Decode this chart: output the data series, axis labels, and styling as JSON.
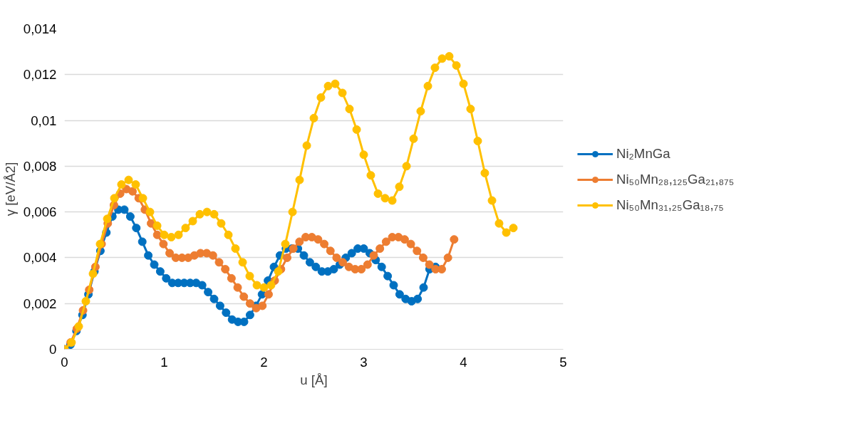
{
  "chart_data": {
    "type": "line",
    "xlabel": "u [Å]",
    "ylabel": "γ [eV/Å2]",
    "xlim": [
      0,
      5
    ],
    "xticks": [
      0,
      1,
      2,
      3,
      4,
      5
    ],
    "ylim": [
      0,
      0.014
    ],
    "yticks": [
      0,
      {
        "value": 0.002,
        "label": "0,002"
      },
      {
        "value": 0.004,
        "label": "0,004"
      },
      {
        "value": 0.006,
        "label": "0,006"
      },
      {
        "value": 0.008,
        "label": "0,008"
      },
      {
        "value": 0.01,
        "label": "0,01"
      },
      {
        "value": 0.012,
        "label": "0,012"
      },
      {
        "value": 0.014,
        "label": "0,014"
      }
    ],
    "grid": "y",
    "legend": "right",
    "marker": "circle",
    "line_style": "solid",
    "series": [
      {
        "name": "Ni₂MnGa",
        "color": "#0070c0",
        "x": [
          0,
          0.06,
          0.12,
          0.18,
          0.24,
          0.3,
          0.36,
          0.42,
          0.48,
          0.54,
          0.6,
          0.66,
          0.72,
          0.78,
          0.84,
          0.9,
          0.96,
          1.02,
          1.08,
          1.14,
          1.2,
          1.26,
          1.32,
          1.38,
          1.44,
          1.5,
          1.56,
          1.62,
          1.68,
          1.74,
          1.8,
          1.86,
          1.92,
          1.98,
          2.04,
          2.1,
          2.16,
          2.22,
          2.28,
          2.34,
          2.4,
          2.46,
          2.52,
          2.58,
          2.64,
          2.7,
          2.76,
          2.82,
          2.88,
          2.94,
          3.0,
          3.06,
          3.12,
          3.18,
          3.24,
          3.3,
          3.36,
          3.42,
          3.48,
          3.54,
          3.6,
          3.66,
          3.72
        ],
        "values": [
          0,
          0.0002,
          0.0008,
          0.0015,
          0.0024,
          0.0034,
          0.0043,
          0.0051,
          0.0058,
          0.0061,
          0.0061,
          0.0058,
          0.0053,
          0.0047,
          0.0041,
          0.0037,
          0.0034,
          0.0031,
          0.0029,
          0.0029,
          0.0029,
          0.0029,
          0.0029,
          0.0028,
          0.0025,
          0.0022,
          0.0019,
          0.0016,
          0.0013,
          0.0012,
          0.0012,
          0.0015,
          0.0019,
          0.0024,
          0.003,
          0.0036,
          0.0041,
          0.0044,
          0.0044,
          0.0044,
          0.0041,
          0.0038,
          0.0036,
          0.0034,
          0.0034,
          0.0035,
          0.0037,
          0.004,
          0.0042,
          0.0044,
          0.0044,
          0.0042,
          0.0039,
          0.0036,
          0.0032,
          0.0028,
          0.0024,
          0.0022,
          0.0021,
          0.0022,
          0.0027,
          0.0035,
          0.0036
        ]
      },
      {
        "name": "Ni₅₀Mn₂₈,₁₂₅Ga₂₁,₈₇₅",
        "color": "#ed7d31",
        "x": [
          0,
          0.062,
          0.124,
          0.186,
          0.248,
          0.31,
          0.372,
          0.434,
          0.496,
          0.558,
          0.62,
          0.682,
          0.744,
          0.806,
          0.868,
          0.93,
          0.992,
          1.054,
          1.116,
          1.178,
          1.24,
          1.302,
          1.364,
          1.426,
          1.488,
          1.55,
          1.612,
          1.674,
          1.736,
          1.798,
          1.86,
          1.922,
          1.984,
          2.046,
          2.108,
          2.17,
          2.232,
          2.294,
          2.356,
          2.418,
          2.48,
          2.542,
          2.604,
          2.666,
          2.728,
          2.79,
          2.852,
          2.914,
          2.976,
          3.038,
          3.1,
          3.162,
          3.224,
          3.286,
          3.348,
          3.41,
          3.472,
          3.534,
          3.596,
          3.658,
          3.72,
          3.782,
          3.844,
          3.906
        ],
        "values": [
          0,
          0.0003,
          0.0009,
          0.0017,
          0.0026,
          0.0036,
          0.0046,
          0.0055,
          0.0063,
          0.0068,
          0.007,
          0.0069,
          0.0066,
          0.0061,
          0.0055,
          0.005,
          0.0046,
          0.0042,
          0.004,
          0.004,
          0.004,
          0.0041,
          0.0042,
          0.0042,
          0.0041,
          0.0038,
          0.0035,
          0.0031,
          0.0027,
          0.0023,
          0.002,
          0.0018,
          0.0019,
          0.0024,
          0.003,
          0.0035,
          0.004,
          0.0044,
          0.0047,
          0.0049,
          0.0049,
          0.0048,
          0.0046,
          0.0043,
          0.004,
          0.0038,
          0.0036,
          0.0035,
          0.0035,
          0.0037,
          0.0041,
          0.0044,
          0.0047,
          0.0049,
          0.0049,
          0.0048,
          0.0046,
          0.0043,
          0.004,
          0.0037,
          0.0035,
          0.0035,
          0.004,
          0.0048
        ]
      },
      {
        "name": "Ni₅₀Mn₃₁,₂₅Ga₁₈,₇₅",
        "color": "#ffc000",
        "x": [
          0,
          0.071,
          0.143,
          0.214,
          0.286,
          0.357,
          0.429,
          0.5,
          0.571,
          0.643,
          0.714,
          0.786,
          0.857,
          0.929,
          1.0,
          1.071,
          1.143,
          1.214,
          1.286,
          1.357,
          1.429,
          1.5,
          1.571,
          1.643,
          1.714,
          1.786,
          1.857,
          1.929,
          2.0,
          2.071,
          2.143,
          2.214,
          2.286,
          2.357,
          2.429,
          2.5,
          2.571,
          2.643,
          2.714,
          2.786,
          2.857,
          2.929,
          3.0,
          3.071,
          3.143,
          3.214,
          3.286,
          3.357,
          3.429,
          3.5,
          3.571,
          3.643,
          3.714,
          3.786,
          3.857,
          3.929,
          4.0,
          4.071,
          4.143,
          4.214,
          4.286,
          4.357,
          4.429,
          4.5
        ],
        "values": [
          0,
          0.0003,
          0.001,
          0.0021,
          0.0033,
          0.0046,
          0.0057,
          0.0066,
          0.0072,
          0.0074,
          0.0072,
          0.0066,
          0.006,
          0.0054,
          0.005,
          0.0049,
          0.005,
          0.0053,
          0.0056,
          0.0059,
          0.006,
          0.0059,
          0.0055,
          0.005,
          0.0044,
          0.0038,
          0.0032,
          0.0028,
          0.0027,
          0.0028,
          0.0034,
          0.0046,
          0.006,
          0.0074,
          0.0089,
          0.0101,
          0.011,
          0.0115,
          0.0116,
          0.0112,
          0.0105,
          0.0096,
          0.0085,
          0.0076,
          0.0068,
          0.0066,
          0.0065,
          0.0071,
          0.008,
          0.0092,
          0.0104,
          0.0115,
          0.0123,
          0.0127,
          0.0128,
          0.0124,
          0.0116,
          0.0105,
          0.0091,
          0.0077,
          0.0065,
          0.0055,
          0.0051,
          0.0053
        ]
      }
    ]
  }
}
